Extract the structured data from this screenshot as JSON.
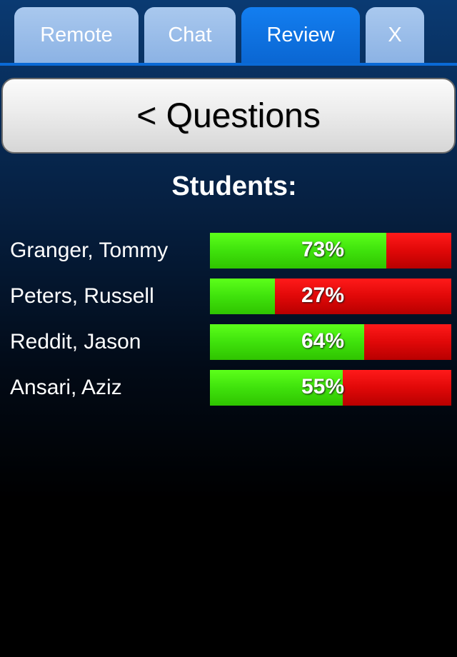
{
  "tabs": [
    {
      "label": "Remote",
      "active": false
    },
    {
      "label": "Chat",
      "active": false
    },
    {
      "label": "Review",
      "active": true
    },
    {
      "label": "X",
      "active": false
    }
  ],
  "back_button": {
    "label": "< Questions"
  },
  "students_heading": "Students:",
  "students": [
    {
      "name": "Granger, Tommy",
      "score_label": "73%",
      "score": 0.73
    },
    {
      "name": "Peters, Russell",
      "score_label": "27%",
      "score": 0.27
    },
    {
      "name": "Reddit, Jason",
      "score_label": "64%",
      "score": 0.64
    },
    {
      "name": "Ansari, Aziz",
      "score_label": "55%",
      "score": 0.55
    }
  ],
  "colors": {
    "tab_inactive": "#9bbde9",
    "tab_active": "#0e72e2",
    "correct": "#3fe20c",
    "incorrect": "#e00808"
  }
}
